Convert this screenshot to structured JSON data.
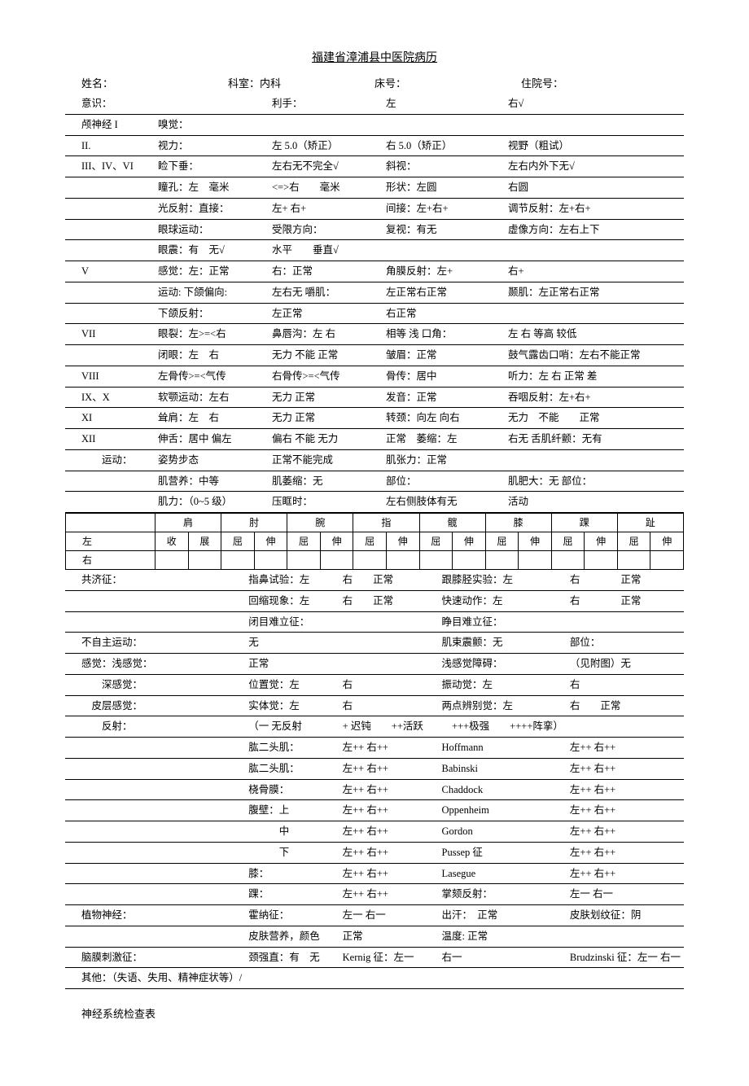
{
  "title": "福建省漳浦县中医院病历",
  "header": {
    "name_label": "姓名：",
    "dept_label": "科室：内科",
    "bed_label": "床号：",
    "admit_label": "住院号："
  },
  "rows": [
    {
      "c1": "意识：",
      "c2": "",
      "c3": "利手：",
      "c4": "左",
      "c5": "右√"
    },
    {
      "c1": "颅神经 I",
      "c2": "嗅觉：",
      "c3": "",
      "c4": "",
      "c5": ""
    },
    {
      "c1": "II.",
      "c2": "视力：",
      "c3": "左 5.0（矫正）",
      "c4": "右 5.0（矫正）",
      "c5": "视野（粗试）"
    },
    {
      "c1": "III、IV、VI",
      "c2": "睑下垂：",
      "c3": "左右无不完全√",
      "c4": "斜视：",
      "c5": "左右内外下无√"
    },
    {
      "c1": "",
      "c2": "瞳孔：左　毫米",
      "c3": "<=>右　　毫米",
      "c4": "形状：左圆",
      "c5": "右圆"
    },
    {
      "c1": "",
      "c2": "光反射：直接：",
      "c3": "左+ 右+",
      "c4": "间接：左+右+",
      "c5": "调节反射：左+右+"
    },
    {
      "c1": "",
      "c2": "眼球运动：",
      "c3": "受限方向：",
      "c4": "复视：有无",
      "c5": "虚像方向：左右上下"
    },
    {
      "c1": "",
      "c2": "眼震：有　无√",
      "c3": "水平　　垂直√",
      "c4": "",
      "c5": ""
    },
    {
      "c1": "V",
      "c2": "感觉：左：正常",
      "c3": "右：正常",
      "c4": "角膜反射：左+",
      "c5": "右+"
    },
    {
      "c1": "",
      "c2": "运动: 下颌偏向:",
      "c3": "左右无 嚼肌：",
      "c4": "左正常右正常",
      "c5": "颞肌：左正常右正常"
    },
    {
      "c1": "",
      "c2": "下颌反射：",
      "c3": "左正常",
      "c4": "右正常",
      "c5": ""
    },
    {
      "c1": "VII",
      "c2": "眼裂：左>=<右",
      "c3": "鼻唇沟：左 右",
      "c4": "相等 浅 口角：",
      "c5": "左 右 等高 较低"
    },
    {
      "c1": "",
      "c2": "闭眼：左　右",
      "c3": "无力 不能 正常",
      "c4": "皱眉：正常",
      "c5": "鼓气露齿口哨：左右不能正常"
    },
    {
      "c1": "VIII",
      "c2": "左骨传>=<气传",
      "c3": "右骨传>=<气传",
      "c4": "骨传：居中",
      "c5": "听力：左 右 正常 差"
    },
    {
      "c1": "IX、X",
      "c2": "软颚运动：左右",
      "c3": "无力 正常",
      "c4": "发音：正常",
      "c5": "吞咽反射：左+右+"
    },
    {
      "c1": "XI",
      "c2": "耸肩：左　右",
      "c3": "无力 正常",
      "c4": "转颈：向左 向右",
      "c5": "无力　不能　　正常"
    },
    {
      "c1": "XII",
      "c2": "伸舌：居中 偏左",
      "c3": "偏右 不能 无力",
      "c4": "正常　萎缩：左",
      "c5": "右无 舌肌纤颤：无有"
    },
    {
      "c1": "　　运动：",
      "c2": "姿势步态",
      "c3": "正常不能完成",
      "c4": "肌张力：正常",
      "c5": ""
    },
    {
      "c1": "",
      "c2": "肌营养：中等",
      "c3": "肌萎缩：无",
      "c4": "部位：",
      "c5": "肌肥大：无 部位："
    },
    {
      "c1": "",
      "c2": "肌力：（0~5 级）",
      "c3": "压眶时：",
      "c4": "左右侧肢体有无",
      "c5": "活动"
    }
  ],
  "joint_headers": [
    "",
    "肩",
    "",
    "肘",
    "",
    "腕",
    "",
    "指",
    "",
    "髋",
    "",
    "膝",
    "",
    "踝",
    "",
    "趾",
    ""
  ],
  "joint_sub": [
    "",
    "收",
    "展",
    "屈",
    "伸",
    "屈",
    "伸",
    "屈",
    "伸",
    "屈",
    "伸",
    "屈",
    "伸",
    "屈",
    "伸",
    "屈",
    "伸"
  ],
  "joint_left_label": "左",
  "joint_right_label": "右",
  "rows2": [
    {
      "c1": "共济征：",
      "c2": "指鼻试验：左",
      "c3": "右　　正常",
      "c4": "跟膝胫实验：左",
      "c5": "右　　　　正常"
    },
    {
      "c1": "",
      "c2": "回缩现象：左",
      "c3": "右　　正常",
      "c4": "快速动作：左",
      "c5": "右　　　　正常"
    },
    {
      "c1": "",
      "c2": "闭目难立征：",
      "c3": "",
      "c4": "睁目难立征：",
      "c5": ""
    },
    {
      "c1": "不自主运动：",
      "c2": "无",
      "c3": "",
      "c4": "肌束震颤：无",
      "c5": "部位："
    },
    {
      "c1": "感觉：浅感觉：",
      "c2": "正常",
      "c3": "",
      "c4": "浅感觉障碍：",
      "c5": "（见附图）无"
    },
    {
      "c1": "　　深感觉：",
      "c2": "位置觉：左",
      "c3": "右",
      "c4": "振动觉：左",
      "c5": "右"
    },
    {
      "c1": "　皮层感觉：",
      "c2": "实体觉：左",
      "c3": "右",
      "c4": "两点辨别觉：左",
      "c5": "右　　正常"
    },
    {
      "c1": "　　反射：",
      "c2": "（一 无反射",
      "c3": "+ 迟钝　　++活跃",
      "c4": "　+++极强　　++++阵挛）",
      "c5": ""
    },
    {
      "c1": "",
      "c2": "肱二头肌：",
      "c3": "左++ 右++",
      "c4": "Hoffmann",
      "c5": "左++ 右++"
    },
    {
      "c1": "",
      "c2": "肱二头肌：",
      "c3": "左++ 右++",
      "c4": "Babinski",
      "c5": "左++ 右++"
    },
    {
      "c1": "",
      "c2": "桡骨膜：",
      "c3": "左++ 右++",
      "c4": "Chaddock",
      "c5": "左++ 右++"
    },
    {
      "c1": "",
      "c2": "腹壁：上",
      "c3": "左++ 右++",
      "c4": "Oppenheim",
      "c5": "左++ 右++"
    },
    {
      "c1": "",
      "c2": "　　　中",
      "c3": "左++ 右++",
      "c4": "Gordon",
      "c5": "左++ 右++"
    },
    {
      "c1": "",
      "c2": "　　　下",
      "c3": "左++ 右++",
      "c4": "Pussep 征",
      "c5": "左++ 右++"
    },
    {
      "c1": "",
      "c2": "膝：",
      "c3": "左++ 右++",
      "c4": "Lasegue",
      "c5": "左++ 右++"
    },
    {
      "c1": "",
      "c2": "踝：",
      "c3": "左++ 右++",
      "c4": "掌颏反射：",
      "c5": "左一 右一"
    },
    {
      "c1": "植物神经：",
      "c2": "霍纳征：",
      "c3": "左一 右一",
      "c4": "出汗：　正常",
      "c5": "皮肤划纹征：阴"
    },
    {
      "c1": "",
      "c2": "皮肤营养，颜色",
      "c3": "正常",
      "c4": "温度: 正常",
      "c5": ""
    },
    {
      "c1": "脑膜刺激征：",
      "c2": "颈强直：有　无",
      "c3": "Kernig 征：左一",
      "c4": "右一",
      "c5": "Brudzinski 征：左一 右一"
    },
    {
      "c1": "其他：（失语、失用、精神症状等）/",
      "c2": "",
      "c3": "",
      "c4": "",
      "c5": ""
    }
  ],
  "footer": "神经系统检查表"
}
